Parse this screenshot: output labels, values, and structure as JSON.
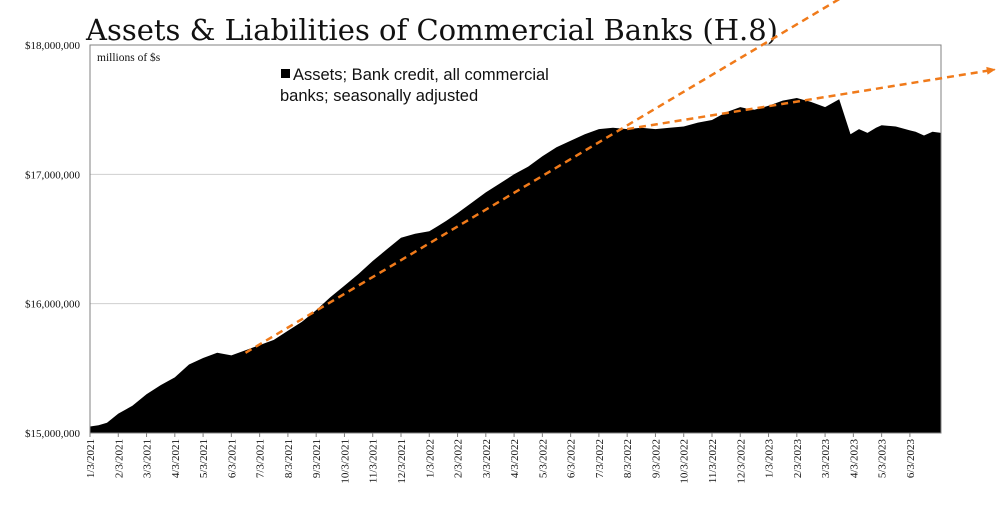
{
  "chart_data": {
    "type": "area",
    "title": "Assets & Liabilities of Commercial Banks (H.8)",
    "units_label": "millions of $s",
    "xlabel": "",
    "ylabel": "",
    "legend_text": "Assets; Bank credit, all commercial banks; seasonally adjusted",
    "legend_line1": "Assets; Bank credit, all commercial",
    "legend_line2": "banks; seasonally adjusted",
    "legend_position": "top-center",
    "ylim": [
      15000000,
      18000000
    ],
    "y_ticks": [
      15000000,
      16000000,
      17000000,
      18000000
    ],
    "y_tick_labels": [
      "$15,000,000",
      "$16,000,000",
      "$17,000,000",
      "$18,000,000"
    ],
    "x_tick_labels": [
      "1/3/2021",
      "2/3/2021",
      "3/3/2021",
      "4/3/2021",
      "5/3/2021",
      "6/3/2021",
      "7/3/2021",
      "8/3/2021",
      "9/3/2021",
      "10/3/2021",
      "11/3/2021",
      "12/3/2021",
      "1/3/2022",
      "2/3/2022",
      "3/3/2022",
      "4/3/2022",
      "5/3/2022",
      "6/3/2022",
      "7/3/2022",
      "8/3/2022",
      "9/3/2022",
      "10/3/2022",
      "11/3/2022",
      "12/3/2022",
      "1/3/2023",
      "2/3/2023",
      "3/3/2023",
      "4/3/2023",
      "5/3/2023",
      "6/3/2023"
    ],
    "x_range_months": [
      0,
      30.1
    ],
    "grid": "horizontal",
    "fill_color": "#000000",
    "trend_color": "#f07a1a",
    "series": [
      {
        "name": "Assets; Bank credit, all commercial banks; seasonally adjusted",
        "x": [
          0,
          0.3,
          0.6,
          1.0,
          1.5,
          2.0,
          2.5,
          3.0,
          3.5,
          4.0,
          4.5,
          5.0,
          5.5,
          6.0,
          6.5,
          7.0,
          7.5,
          8.0,
          8.5,
          9.0,
          9.5,
          10.0,
          10.5,
          11.0,
          11.5,
          12.0,
          12.3,
          12.6,
          13.0,
          13.5,
          14.0,
          14.5,
          15.0,
          15.5,
          16.0,
          16.5,
          17.0,
          17.5,
          18.0,
          18.5,
          19.0,
          19.5,
          20.0,
          20.5,
          21.0,
          21.5,
          22.0,
          22.5,
          23.0,
          23.2,
          23.5,
          24.0,
          24.5,
          25.0,
          25.5,
          26.0,
          26.5,
          26.9,
          27.2,
          27.5,
          27.8,
          28.0,
          28.5,
          29.0,
          29.2,
          29.5,
          29.8,
          30.1
        ],
        "y": [
          15050000,
          15060000,
          15080000,
          15150000,
          15210000,
          15300000,
          15370000,
          15430000,
          15530000,
          15580000,
          15620000,
          15600000,
          15640000,
          15680000,
          15720000,
          15790000,
          15860000,
          15950000,
          16050000,
          16140000,
          16230000,
          16330000,
          16420000,
          16510000,
          16540000,
          16560000,
          16600000,
          16640000,
          16700000,
          16780000,
          16860000,
          16930000,
          17000000,
          17060000,
          17140000,
          17210000,
          17260000,
          17310000,
          17350000,
          17360000,
          17350000,
          17360000,
          17350000,
          17360000,
          17370000,
          17400000,
          17420000,
          17480000,
          17520000,
          17510000,
          17500000,
          17530000,
          17570000,
          17590000,
          17560000,
          17520000,
          17580000,
          17310000,
          17350000,
          17320000,
          17360000,
          17380000,
          17370000,
          17340000,
          17330000,
          17300000,
          17330000,
          17320000
        ]
      }
    ],
    "trendlines": [
      {
        "x": [
          5.5,
          27.0
        ],
        "y": [
          15620000,
          18420000
        ]
      },
      {
        "x": [
          19.0,
          32.0
        ],
        "y": [
          17350000,
          17810000
        ]
      }
    ]
  }
}
